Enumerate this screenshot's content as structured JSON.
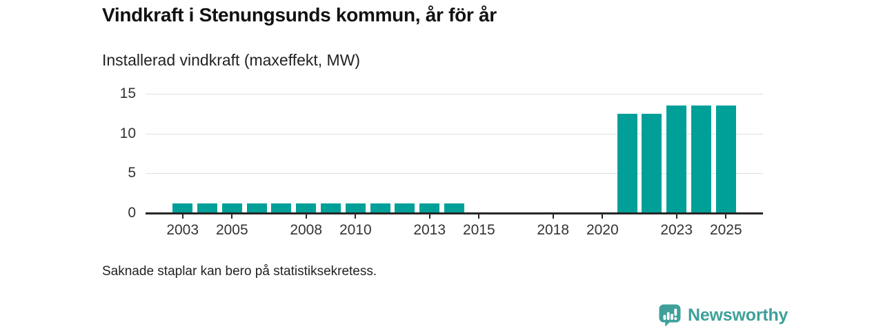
{
  "chart_data": {
    "type": "bar",
    "title": "Vindkraft i Stenungsunds kommun, år för år",
    "subtitle": "Installerad vindkraft (maxeffekt, MW)",
    "footnote": "Saknade staplar kan bero på statistiksekretess.",
    "unit": "MW",
    "ylim": [
      0,
      15
    ],
    "y_ticks": [
      0,
      5,
      10,
      15
    ],
    "x_domain": [
      2002,
      2026
    ],
    "x_tick_labels": [
      2003,
      2005,
      2008,
      2010,
      2013,
      2015,
      2018,
      2020,
      2023,
      2025
    ],
    "grid": "horizontal",
    "legend": "none",
    "series": [
      {
        "name": "Installerad vindkraft (maxeffekt, MW)",
        "points": [
          {
            "year": 2002,
            "value": null
          },
          {
            "year": 2003,
            "value": 1.25
          },
          {
            "year": 2004,
            "value": 1.25
          },
          {
            "year": 2005,
            "value": 1.25
          },
          {
            "year": 2006,
            "value": 1.25
          },
          {
            "year": 2007,
            "value": 1.25
          },
          {
            "year": 2008,
            "value": 1.25
          },
          {
            "year": 2009,
            "value": 1.25
          },
          {
            "year": 2010,
            "value": 1.25
          },
          {
            "year": 2011,
            "value": 1.25
          },
          {
            "year": 2012,
            "value": 1.25
          },
          {
            "year": 2013,
            "value": 1.25
          },
          {
            "year": 2014,
            "value": 1.25
          },
          {
            "year": 2015,
            "value": null
          },
          {
            "year": 2016,
            "value": null
          },
          {
            "year": 2017,
            "value": null
          },
          {
            "year": 2018,
            "value": null
          },
          {
            "year": 2019,
            "value": null
          },
          {
            "year": 2020,
            "value": null
          },
          {
            "year": 2021,
            "value": 12.5
          },
          {
            "year": 2022,
            "value": 12.5
          },
          {
            "year": 2023,
            "value": 13.5
          },
          {
            "year": 2024,
            "value": 13.5
          },
          {
            "year": 2025,
            "value": 13.5
          },
          {
            "year": 2026,
            "value": null
          }
        ]
      }
    ],
    "colors": {
      "bar": "#00a099",
      "axis": "#262626",
      "grid": "#e0e0e0",
      "tick_text": "#333333"
    }
  },
  "branding": {
    "name": "Newsworthy",
    "color": "#3fa09a",
    "icon": "newsworthy-speech-bubble-bar-chart-icon"
  }
}
